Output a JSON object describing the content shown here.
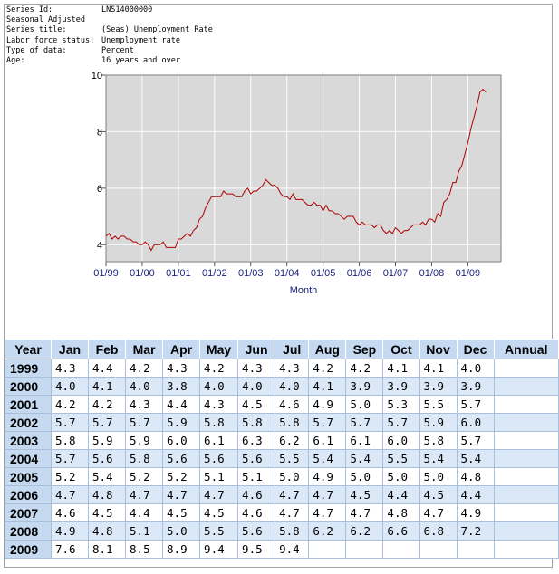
{
  "metadata": [
    {
      "key": "Series Id:",
      "value": "LNS14000000"
    },
    {
      "key": "Seasonal Adjusted",
      "value": ""
    },
    {
      "key": "Series title:",
      "value": "(Seas) Unemployment Rate"
    },
    {
      "key": "Labor force status:",
      "value": "Unemployment rate"
    },
    {
      "key": "Type of data:",
      "value": "Percent"
    },
    {
      "key": "Age:",
      "value": "16 years and over"
    }
  ],
  "chart_data": {
    "type": "line",
    "title": "",
    "xlabel": "Month",
    "ylabel": "",
    "ylim": [
      3.4,
      10
    ],
    "yticks": [
      4,
      6,
      8,
      10
    ],
    "xticks": [
      "01/99",
      "01/00",
      "01/01",
      "01/02",
      "01/03",
      "01/04",
      "01/05",
      "01/06",
      "01/07",
      "01/08",
      "01/09"
    ],
    "grid": true,
    "series": [
      {
        "name": "Unemployment Rate",
        "color": "#b00000",
        "start": "1999-01",
        "values": [
          4.3,
          4.4,
          4.2,
          4.3,
          4.2,
          4.3,
          4.3,
          4.2,
          4.2,
          4.1,
          4.1,
          4.0,
          4.0,
          4.1,
          4.0,
          3.8,
          4.0,
          4.0,
          4.0,
          4.1,
          3.9,
          3.9,
          3.9,
          3.9,
          4.2,
          4.2,
          4.3,
          4.4,
          4.3,
          4.5,
          4.6,
          4.9,
          5.0,
          5.3,
          5.5,
          5.7,
          5.7,
          5.7,
          5.7,
          5.9,
          5.8,
          5.8,
          5.8,
          5.7,
          5.7,
          5.7,
          5.9,
          6.0,
          5.8,
          5.9,
          5.9,
          6.0,
          6.1,
          6.3,
          6.2,
          6.1,
          6.1,
          6.0,
          5.8,
          5.7,
          5.7,
          5.6,
          5.8,
          5.6,
          5.6,
          5.6,
          5.5,
          5.4,
          5.4,
          5.5,
          5.4,
          5.4,
          5.2,
          5.4,
          5.2,
          5.2,
          5.1,
          5.1,
          5.0,
          4.9,
          5.0,
          5.0,
          5.0,
          4.8,
          4.7,
          4.8,
          4.7,
          4.7,
          4.7,
          4.6,
          4.7,
          4.7,
          4.5,
          4.4,
          4.5,
          4.4,
          4.6,
          4.5,
          4.4,
          4.5,
          4.5,
          4.6,
          4.7,
          4.7,
          4.7,
          4.8,
          4.7,
          4.9,
          4.9,
          4.8,
          5.1,
          5.0,
          5.5,
          5.6,
          5.8,
          6.2,
          6.2,
          6.6,
          6.8,
          7.2,
          7.6,
          8.1,
          8.5,
          8.9,
          9.4,
          9.5,
          9.4
        ]
      }
    ]
  },
  "table": {
    "headers": [
      "Year",
      "Jan",
      "Feb",
      "Mar",
      "Apr",
      "May",
      "Jun",
      "Jul",
      "Aug",
      "Sep",
      "Oct",
      "Nov",
      "Dec",
      "Annual"
    ],
    "rows": [
      {
        "year": "1999",
        "values": [
          "4.3",
          "4.4",
          "4.2",
          "4.3",
          "4.2",
          "4.3",
          "4.3",
          "4.2",
          "4.2",
          "4.1",
          "4.1",
          "4.0",
          ""
        ]
      },
      {
        "year": "2000",
        "values": [
          "4.0",
          "4.1",
          "4.0",
          "3.8",
          "4.0",
          "4.0",
          "4.0",
          "4.1",
          "3.9",
          "3.9",
          "3.9",
          "3.9",
          ""
        ]
      },
      {
        "year": "2001",
        "values": [
          "4.2",
          "4.2",
          "4.3",
          "4.4",
          "4.3",
          "4.5",
          "4.6",
          "4.9",
          "5.0",
          "5.3",
          "5.5",
          "5.7",
          ""
        ]
      },
      {
        "year": "2002",
        "values": [
          "5.7",
          "5.7",
          "5.7",
          "5.9",
          "5.8",
          "5.8",
          "5.8",
          "5.7",
          "5.7",
          "5.7",
          "5.9",
          "6.0",
          ""
        ]
      },
      {
        "year": "2003",
        "values": [
          "5.8",
          "5.9",
          "5.9",
          "6.0",
          "6.1",
          "6.3",
          "6.2",
          "6.1",
          "6.1",
          "6.0",
          "5.8",
          "5.7",
          ""
        ]
      },
      {
        "year": "2004",
        "values": [
          "5.7",
          "5.6",
          "5.8",
          "5.6",
          "5.6",
          "5.6",
          "5.5",
          "5.4",
          "5.4",
          "5.5",
          "5.4",
          "5.4",
          ""
        ]
      },
      {
        "year": "2005",
        "values": [
          "5.2",
          "5.4",
          "5.2",
          "5.2",
          "5.1",
          "5.1",
          "5.0",
          "4.9",
          "5.0",
          "5.0",
          "5.0",
          "4.8",
          ""
        ]
      },
      {
        "year": "2006",
        "values": [
          "4.7",
          "4.8",
          "4.7",
          "4.7",
          "4.7",
          "4.6",
          "4.7",
          "4.7",
          "4.5",
          "4.4",
          "4.5",
          "4.4",
          ""
        ]
      },
      {
        "year": "2007",
        "values": [
          "4.6",
          "4.5",
          "4.4",
          "4.5",
          "4.5",
          "4.6",
          "4.7",
          "4.7",
          "4.7",
          "4.8",
          "4.7",
          "4.9",
          ""
        ]
      },
      {
        "year": "2008",
        "values": [
          "4.9",
          "4.8",
          "5.1",
          "5.0",
          "5.5",
          "5.6",
          "5.8",
          "6.2",
          "6.2",
          "6.6",
          "6.8",
          "7.2",
          ""
        ]
      },
      {
        "year": "2009",
        "values": [
          "7.6",
          "8.1",
          "8.5",
          "8.9",
          "9.4",
          "9.5",
          "9.4",
          "",
          "",
          "",
          "",
          "",
          ""
        ]
      }
    ]
  }
}
